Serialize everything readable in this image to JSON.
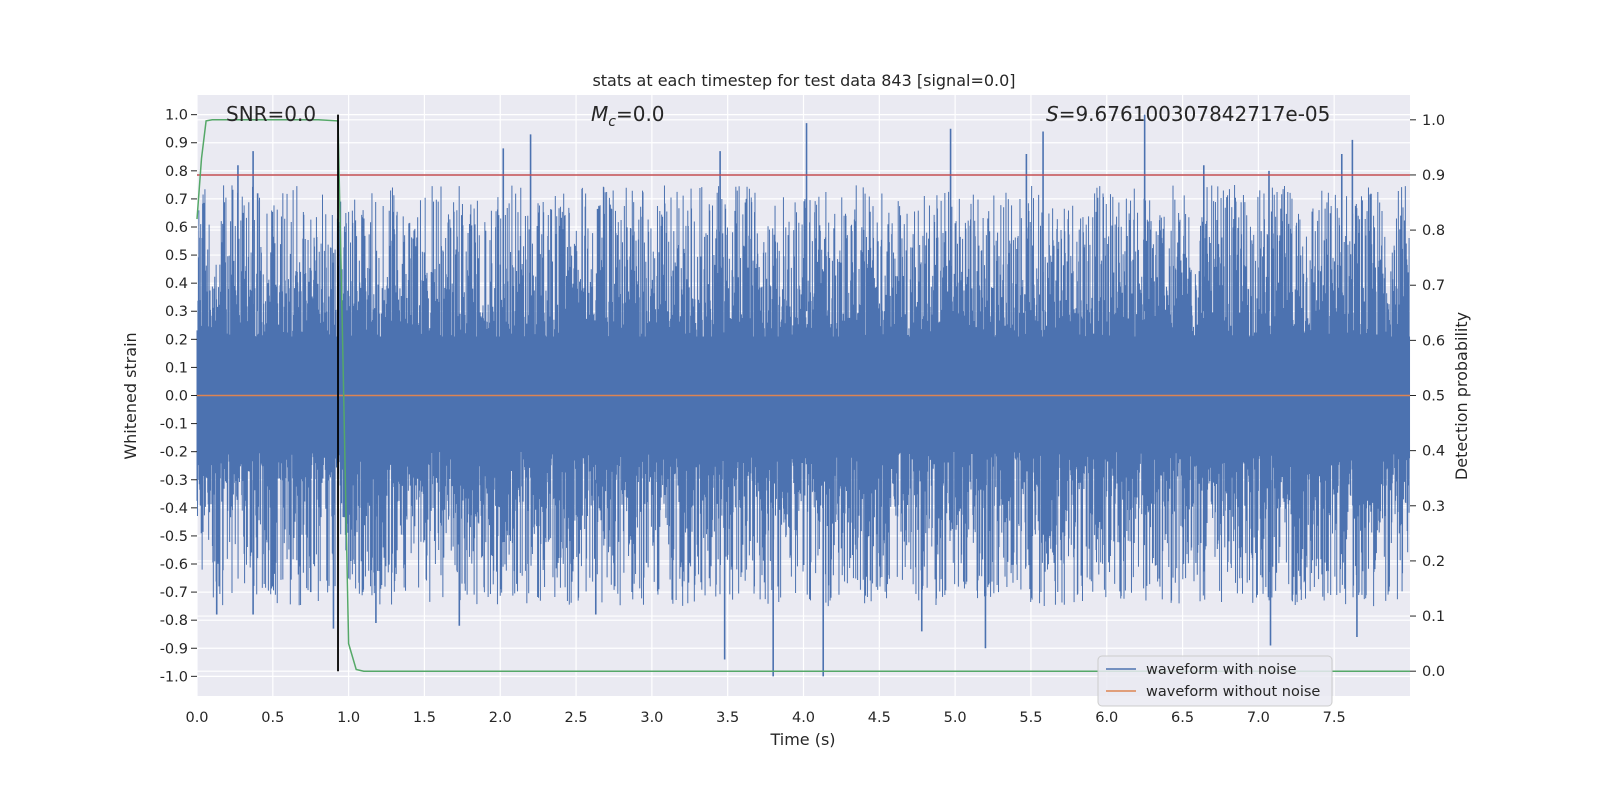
{
  "chart_data": {
    "type": "line",
    "title": "stats at each timestep for test data 843 [signal=0.0]",
    "xlabel": "Time (s)",
    "ylabel": "Whitened strain",
    "ylabel_right": "Detection probability",
    "xlim": [
      0.0,
      8.0
    ],
    "ylim": [
      -1.07,
      1.07
    ],
    "ylim_right": [
      -0.045,
      1.045
    ],
    "x_ticks": [
      0.0,
      0.5,
      1.0,
      1.5,
      2.0,
      2.5,
      3.0,
      3.5,
      4.0,
      4.5,
      5.0,
      5.5,
      6.0,
      6.5,
      7.0,
      7.5
    ],
    "x_tick_labels": [
      "0.0",
      "0.5",
      "1.0",
      "1.5",
      "2.0",
      "2.5",
      "3.0",
      "3.5",
      "4.0",
      "4.5",
      "5.0",
      "5.5",
      "6.0",
      "6.5",
      "7.0",
      "7.5"
    ],
    "y_ticks": [
      1.0,
      0.9,
      0.8,
      0.7,
      0.6,
      0.5,
      0.4,
      0.3,
      0.2,
      0.1,
      0.0,
      -0.1,
      -0.2,
      -0.3,
      -0.4,
      -0.5,
      -0.6,
      -0.7,
      -0.8,
      -0.9,
      -1.0
    ],
    "y_tick_labels": [
      "1.0",
      "0.9",
      "0.8",
      "0.7",
      "0.6",
      "0.5",
      "0.4",
      "0.3",
      "0.2",
      "0.1",
      "0.0",
      "-0.1",
      "-0.2",
      "-0.3",
      "-0.4",
      "-0.5",
      "-0.6",
      "-0.7",
      "-0.8",
      "-0.9",
      "-1.0"
    ],
    "y_right_ticks": [
      1.0,
      0.9,
      0.8,
      0.7,
      0.6,
      0.5,
      0.4,
      0.3,
      0.2,
      0.1,
      0.0
    ],
    "y_right_tick_labels": [
      "1.0",
      "0.9",
      "0.8",
      "0.7",
      "0.6",
      "0.5",
      "0.4",
      "0.3",
      "0.2",
      "0.1",
      "0.0"
    ],
    "grid": true,
    "legend_position": "bottom-right",
    "annotations": {
      "snr": "SNR=0.0",
      "mc_symbol": "M",
      "mc_subscript": "c",
      "mc_value": "=0.0",
      "s_symbol": "S",
      "s_value": "=9.676100307842717e-05"
    },
    "series": [
      {
        "name": "waveform with noise",
        "color": "#4c72b0",
        "axis": "left",
        "description": "dense whitened noise, amplitude mostly within ±0.5 with spikes",
        "peaks": [
          {
            "x": 0.27,
            "y": 0.82
          },
          {
            "x": 0.37,
            "y": 0.87
          },
          {
            "x": 0.4,
            "y": 0.72
          },
          {
            "x": 2.02,
            "y": 0.88
          },
          {
            "x": 2.2,
            "y": 0.93
          },
          {
            "x": 3.45,
            "y": 0.87
          },
          {
            "x": 4.02,
            "y": 0.97
          },
          {
            "x": 4.97,
            "y": 0.95
          },
          {
            "x": 5.47,
            "y": 0.86
          },
          {
            "x": 5.58,
            "y": 0.94
          },
          {
            "x": 6.25,
            "y": 1.0
          },
          {
            "x": 6.64,
            "y": 0.82
          },
          {
            "x": 7.07,
            "y": 0.8
          },
          {
            "x": 7.55,
            "y": 0.86
          },
          {
            "x": 7.62,
            "y": 0.91
          }
        ],
        "troughs": [
          {
            "x": 0.13,
            "y": -0.78
          },
          {
            "x": 0.37,
            "y": -0.78
          },
          {
            "x": 0.5,
            "y": -0.68
          },
          {
            "x": 0.75,
            "y": -0.7
          },
          {
            "x": 0.9,
            "y": -0.83
          },
          {
            "x": 1.18,
            "y": -0.81
          },
          {
            "x": 1.73,
            "y": -0.82
          },
          {
            "x": 2.63,
            "y": -0.78
          },
          {
            "x": 3.48,
            "y": -0.94
          },
          {
            "x": 3.8,
            "y": -1.0
          },
          {
            "x": 4.13,
            "y": -1.0
          },
          {
            "x": 4.78,
            "y": -0.84
          },
          {
            "x": 5.2,
            "y": -0.9
          },
          {
            "x": 7.08,
            "y": -0.89
          },
          {
            "x": 7.65,
            "y": -0.86
          }
        ]
      },
      {
        "name": "waveform without noise",
        "color": "#dd8452",
        "axis": "left",
        "x": [
          0.0,
          8.0
        ],
        "y": [
          0.0,
          0.0
        ]
      },
      {
        "name": "detection probability",
        "color": "#55a868",
        "axis": "right",
        "x": [
          0.0,
          0.03,
          0.06,
          0.1,
          0.2,
          0.5,
          0.8,
          0.93,
          0.96,
          1.0,
          1.05,
          1.1,
          2.0,
          4.0,
          6.0,
          8.0
        ],
        "y": [
          0.82,
          0.93,
          0.998,
          1.0,
          1.0,
          1.0,
          1.0,
          0.998,
          0.6,
          0.05,
          0.003,
          0.0,
          0.0,
          0.0,
          0.0,
          0.0
        ]
      }
    ],
    "threshold": {
      "axis": "right",
      "value": 0.9,
      "color": "#c44e52"
    },
    "vertical_marker": {
      "x": 0.93,
      "color": "#000000",
      "y_top": 1.0,
      "y_bottom_right": 0.0
    }
  }
}
